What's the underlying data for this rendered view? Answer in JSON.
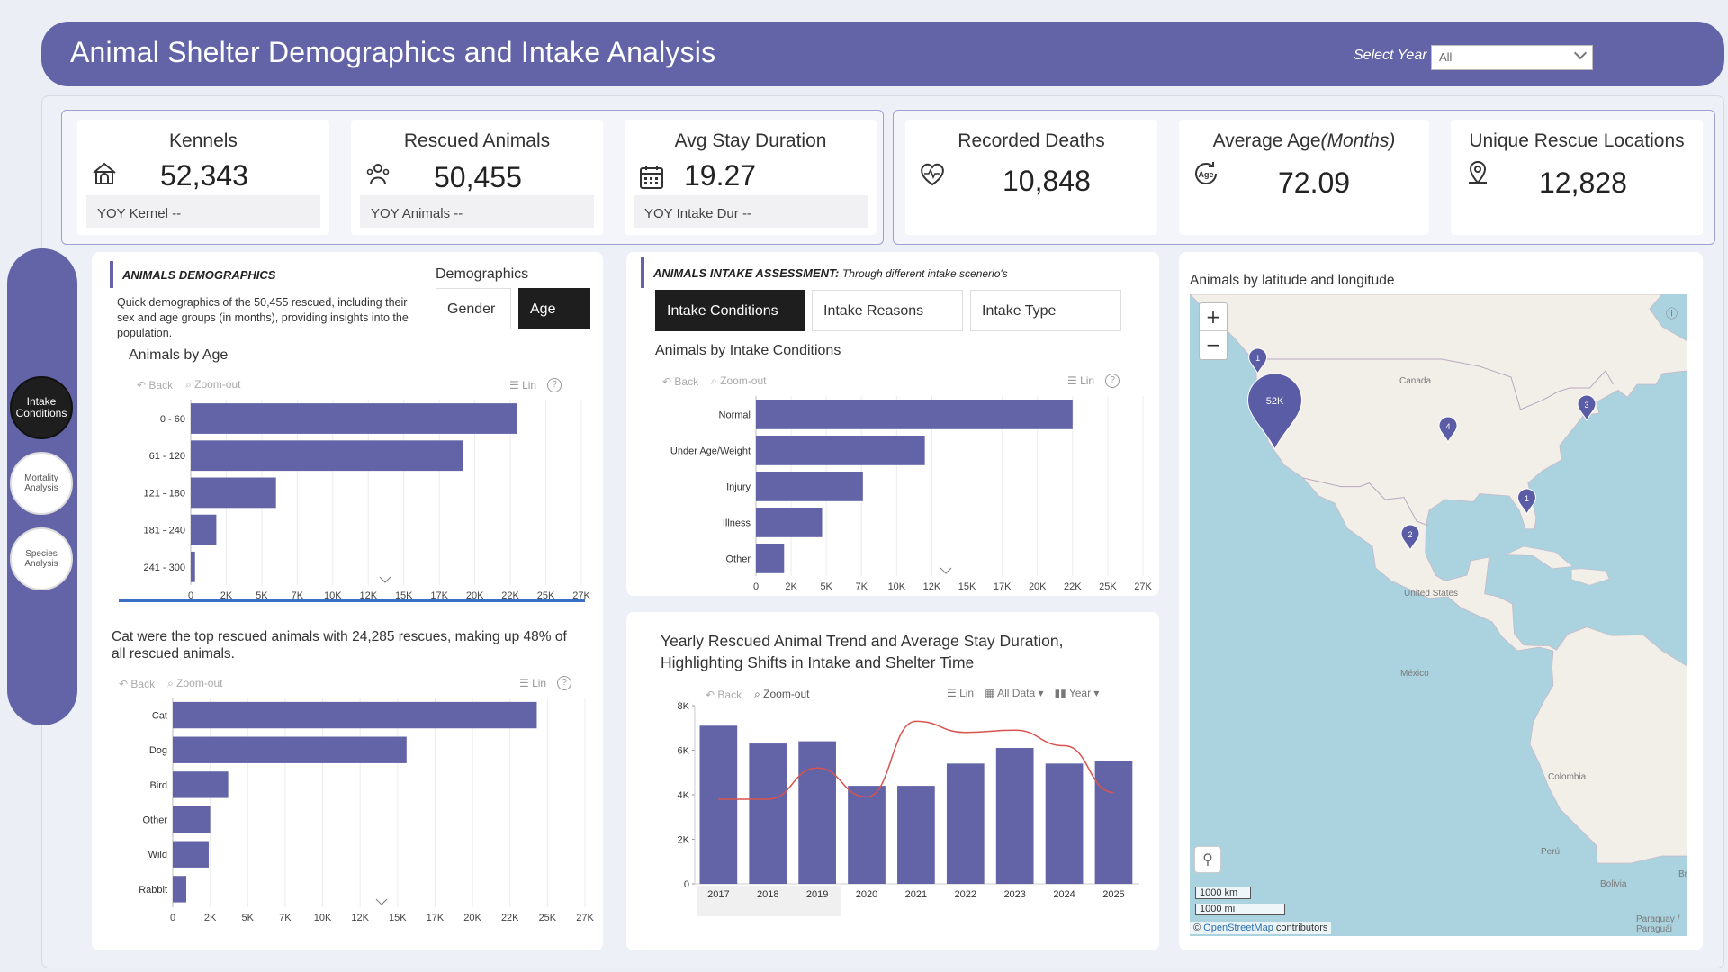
{
  "header": {
    "title": "Animal Shelter Demographics and Intake Analysis",
    "year_label": "Select Year",
    "year_value": "All"
  },
  "kpis": [
    {
      "title": "Kennels",
      "value": "52,343",
      "yoy": "YOY Kernel --",
      "icon": "kennel-icon"
    },
    {
      "title": "Rescued Animals",
      "value": "50,455",
      "yoy": "YOY Animals --",
      "icon": "pets-icon"
    },
    {
      "title": "Avg Stay Duration",
      "value": "19.27",
      "yoy": "YOY Intake Dur --",
      "icon": "calendar-icon"
    },
    {
      "title": "Recorded Deaths",
      "value": "10,848",
      "icon": "heart-pulse-icon"
    },
    {
      "title": "Average Age",
      "title_suffix": "(Months)",
      "value": "72.09",
      "icon": "age-icon"
    },
    {
      "title": "Unique Rescue Locations",
      "value": "12,828",
      "icon": "location-icon"
    }
  ],
  "nav": [
    {
      "label": "Intake Conditions",
      "active": true
    },
    {
      "label": "Mortality Analysis",
      "active": false
    },
    {
      "label": "Species Analysis",
      "active": false
    }
  ],
  "demographics": {
    "section_title": "ANIMALS DEMOGRAPHICS",
    "description": "Quick demographics of the 50,455 rescued, including their sex and age groups (in months), providing insights into the population.",
    "toggle_label": "Demographics",
    "toggle_options": [
      "Gender",
      "Age"
    ],
    "toggle_active": "Age",
    "chart_title": "Animals by Age"
  },
  "toolbar": {
    "back": "Back",
    "zoom_out": "Zoom-out",
    "lin": "Lin",
    "all_data": "All Data",
    "year": "Year",
    "help": "?"
  },
  "species": {
    "insight": "Cat were the top rescued animals with 24,285 rescues, making up 48% of all rescued animals."
  },
  "intake": {
    "section_title": "ANIMALS INTAKE ASSESSMENT:",
    "section_subtitle": "Through different intake scenerio's",
    "tabs": [
      "Intake Conditions",
      "Intake Reasons",
      "Intake Type"
    ],
    "tab_active": "Intake Conditions",
    "chart_title": "Animals by Intake Conditions"
  },
  "trend": {
    "title_line1": "Yearly Rescued Animal Trend and Average Stay Duration,",
    "title_line2": "Highlighting Shifts in Intake and Shelter Time"
  },
  "map": {
    "title": "Animals by latitude and longitude",
    "zoom_in": "+",
    "zoom_out": "−",
    "scale_km": "1000 km",
    "scale_mi": "1000 mi",
    "attribution_prefix": "©",
    "attribution_link": "OpenStreetMap",
    "attribution_suffix": "contributors",
    "labels": [
      "Canada",
      "United States",
      "México",
      "Colombia",
      "Perú",
      "Bolivia",
      "Paraguay / Paraguái",
      "Br"
    ],
    "markers": [
      {
        "label": "1",
        "lon": -124.2,
        "lat": 47.0
      },
      {
        "label": "52K",
        "lon": -121.5,
        "lat": 36.5,
        "big": true
      },
      {
        "label": "4",
        "lon": -94.0,
        "lat": 37.5
      },
      {
        "label": "3",
        "lon": -72.0,
        "lat": 40.5
      },
      {
        "label": "1",
        "lon": -81.5,
        "lat": 27.5
      },
      {
        "label": "2",
        "lon": -100.0,
        "lat": 22.5
      }
    ]
  },
  "chart_data": [
    {
      "type": "bar",
      "orientation": "horizontal",
      "title": "Animals by Age",
      "categories": [
        "0 - 60",
        "61 - 120",
        "121 - 180",
        "181 - 240",
        "241 - 300"
      ],
      "values": [
        23000,
        19200,
        6000,
        1800,
        300
      ],
      "xlim": [
        0,
        27500
      ],
      "xticks": [
        "0",
        "2K",
        "5K",
        "7K",
        "10K",
        "12K",
        "15K",
        "17K",
        "20K",
        "22K",
        "25K",
        "27K"
      ]
    },
    {
      "type": "bar",
      "orientation": "horizontal",
      "title": "Animals by Intake Conditions",
      "categories": [
        "Normal",
        "Under Age/Weight",
        "Injury",
        "Illness",
        "Other"
      ],
      "values": [
        22500,
        12000,
        7600,
        4700,
        2000
      ],
      "xlim": [
        0,
        27500
      ],
      "xticks": [
        "0",
        "2K",
        "5K",
        "7K",
        "10K",
        "12K",
        "15K",
        "17K",
        "20K",
        "22K",
        "25K",
        "27K"
      ]
    },
    {
      "type": "bar",
      "orientation": "horizontal",
      "categories": [
        "Cat",
        "Dog",
        "Bird",
        "Other",
        "Wild",
        "Rabbit"
      ],
      "values": [
        24285,
        15600,
        3700,
        2500,
        2400,
        900
      ],
      "xlim": [
        0,
        27500
      ],
      "xticks": [
        "0",
        "2K",
        "5K",
        "7K",
        "10K",
        "12K",
        "15K",
        "17K",
        "20K",
        "22K",
        "25K",
        "27K"
      ]
    },
    {
      "type": "bar+line",
      "title": "Yearly Rescued Animal Trend and Average Stay Duration, Highlighting Shifts in Intake and Shelter Time",
      "categories": [
        "2017",
        "2018",
        "2019",
        "2020",
        "2021",
        "2022",
        "2023",
        "2024",
        "2025"
      ],
      "series": [
        {
          "type": "bar",
          "values": [
            7100,
            6300,
            6400,
            4400,
            4400,
            5400,
            6100,
            5400,
            5500
          ]
        },
        {
          "type": "line",
          "values": [
            3800,
            3800,
            5200,
            3900,
            7300,
            6800,
            6900,
            6200,
            4100
          ]
        }
      ],
      "ylim": [
        0,
        8000
      ],
      "yticks": [
        "0",
        "2K",
        "4K",
        "6K",
        "8K"
      ]
    }
  ]
}
